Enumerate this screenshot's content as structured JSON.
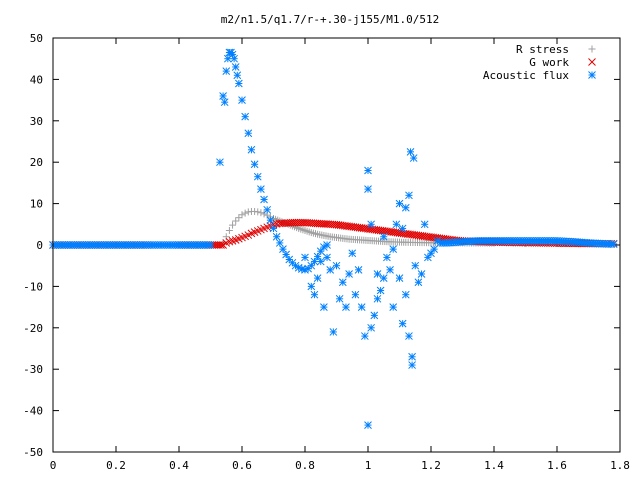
{
  "chart_data": {
    "type": "scatter",
    "title": "m2/n1.5/q1.7/r-+.30-j155/M1.0/512",
    "xlabel": "",
    "ylabel": "",
    "xlim": [
      0,
      1.8
    ],
    "ylim": [
      -50,
      50
    ],
    "xticks": [
      0,
      0.2,
      0.4,
      0.6,
      0.8,
      1,
      1.2,
      1.4,
      1.6,
      1.8
    ],
    "xtick_labels": [
      "0",
      "0.2",
      "0.4",
      "0.6",
      "0.8",
      "1",
      "1.2",
      "1.4",
      "1.6",
      "1.8"
    ],
    "yticks": [
      -50,
      -40,
      -30,
      -20,
      -10,
      0,
      10,
      20,
      30,
      40,
      50
    ],
    "ytick_labels": [
      "-50",
      "-40",
      "-30",
      "-20",
      "-10",
      "0",
      "10",
      "20",
      "30",
      "40",
      "50"
    ],
    "grid": false,
    "legend_position": "top-right",
    "series": [
      {
        "name": "R stress",
        "marker": "plus",
        "color": "#a0a0a0",
        "points": [
          [
            0.0,
            0
          ],
          [
            0.1,
            0
          ],
          [
            0.2,
            0
          ],
          [
            0.3,
            0
          ],
          [
            0.4,
            0
          ],
          [
            0.5,
            0
          ],
          [
            0.53,
            0
          ],
          [
            0.54,
            0.5
          ],
          [
            0.55,
            2
          ],
          [
            0.56,
            3.5
          ],
          [
            0.57,
            4.8
          ],
          [
            0.58,
            5.8
          ],
          [
            0.59,
            6.6
          ],
          [
            0.6,
            7.3
          ],
          [
            0.61,
            7.7
          ],
          [
            0.62,
            8.0
          ],
          [
            0.63,
            8.1
          ],
          [
            0.64,
            8.1
          ],
          [
            0.65,
            8.0
          ],
          [
            0.66,
            7.8
          ],
          [
            0.67,
            7.5
          ],
          [
            0.68,
            7.2
          ],
          [
            0.69,
            6.8
          ],
          [
            0.7,
            6.4
          ],
          [
            0.72,
            5.8
          ],
          [
            0.74,
            5.2
          ],
          [
            0.76,
            4.6
          ],
          [
            0.78,
            4.0
          ],
          [
            0.8,
            3.5
          ],
          [
            0.82,
            3.0
          ],
          [
            0.84,
            2.6
          ],
          [
            0.86,
            2.3
          ],
          [
            0.88,
            2.0
          ],
          [
            0.9,
            1.8
          ],
          [
            0.92,
            1.6
          ],
          [
            0.94,
            1.4
          ],
          [
            0.96,
            1.3
          ],
          [
            0.98,
            1.2
          ],
          [
            1.0,
            1.1
          ],
          [
            1.02,
            1.0
          ],
          [
            1.04,
            0.9
          ],
          [
            1.06,
            0.8
          ],
          [
            1.08,
            0.75
          ],
          [
            1.1,
            0.7
          ],
          [
            1.12,
            0.65
          ],
          [
            1.15,
            0.6
          ],
          [
            1.2,
            0.55
          ],
          [
            1.25,
            0.5
          ],
          [
            1.3,
            0.5
          ],
          [
            1.4,
            0.45
          ],
          [
            1.5,
            0.4
          ],
          [
            1.6,
            0.35
          ],
          [
            1.7,
            0.3
          ],
          [
            1.78,
            0.3
          ]
        ]
      },
      {
        "name": "G work",
        "marker": "cross",
        "color": "#e00000",
        "points": [
          [
            0.0,
            0
          ],
          [
            0.1,
            0
          ],
          [
            0.2,
            0
          ],
          [
            0.3,
            0
          ],
          [
            0.4,
            0
          ],
          [
            0.5,
            0
          ],
          [
            0.54,
            0
          ],
          [
            0.55,
            0.5
          ],
          [
            0.56,
            0.8
          ],
          [
            0.57,
            1.0
          ],
          [
            0.58,
            1.2
          ],
          [
            0.59,
            1.5
          ],
          [
            0.6,
            1.8
          ],
          [
            0.61,
            2.1
          ],
          [
            0.62,
            2.4
          ],
          [
            0.63,
            2.8
          ],
          [
            0.64,
            3.1
          ],
          [
            0.65,
            3.4
          ],
          [
            0.66,
            3.7
          ],
          [
            0.67,
            4.0
          ],
          [
            0.68,
            4.3
          ],
          [
            0.69,
            4.6
          ],
          [
            0.7,
            4.9
          ],
          [
            0.71,
            5.1
          ],
          [
            0.72,
            5.2
          ],
          [
            0.74,
            5.3
          ],
          [
            0.76,
            5.4
          ],
          [
            0.78,
            5.4
          ],
          [
            0.8,
            5.4
          ],
          [
            0.82,
            5.3
          ],
          [
            0.84,
            5.2
          ],
          [
            0.86,
            5.1
          ],
          [
            0.88,
            5.0
          ],
          [
            0.9,
            4.9
          ],
          [
            0.92,
            4.7
          ],
          [
            0.94,
            4.5
          ],
          [
            0.96,
            4.3
          ],
          [
            0.98,
            4.1
          ],
          [
            1.0,
            3.9
          ],
          [
            1.02,
            3.7
          ],
          [
            1.04,
            3.5
          ],
          [
            1.06,
            3.3
          ],
          [
            1.08,
            3.1
          ],
          [
            1.1,
            2.9
          ],
          [
            1.12,
            2.7
          ],
          [
            1.14,
            2.5
          ],
          [
            1.16,
            2.3
          ],
          [
            1.18,
            2.1
          ],
          [
            1.2,
            1.9
          ],
          [
            1.22,
            1.7
          ],
          [
            1.24,
            1.5
          ],
          [
            1.26,
            1.3
          ],
          [
            1.28,
            1.1
          ],
          [
            1.3,
            1.0
          ],
          [
            1.32,
            0.9
          ],
          [
            1.35,
            0.8
          ],
          [
            1.4,
            0.7
          ],
          [
            1.45,
            0.6
          ],
          [
            1.5,
            0.55
          ],
          [
            1.55,
            0.5
          ],
          [
            1.6,
            0.45
          ],
          [
            1.65,
            0.4
          ],
          [
            1.7,
            0.35
          ],
          [
            1.75,
            0.3
          ],
          [
            1.78,
            0.3
          ]
        ]
      },
      {
        "name": "Acoustic flux",
        "marker": "star",
        "color": "#0080ff",
        "points": [
          [
            0.0,
            0
          ],
          [
            0.05,
            0
          ],
          [
            0.1,
            0
          ],
          [
            0.15,
            0
          ],
          [
            0.2,
            0
          ],
          [
            0.25,
            0
          ],
          [
            0.3,
            0
          ],
          [
            0.35,
            0
          ],
          [
            0.4,
            0
          ],
          [
            0.45,
            0
          ],
          [
            0.5,
            0
          ],
          [
            0.53,
            20
          ],
          [
            0.54,
            36
          ],
          [
            0.545,
            34.5
          ],
          [
            0.55,
            42
          ],
          [
            0.555,
            45
          ],
          [
            0.56,
            46.5
          ],
          [
            0.565,
            46.5
          ],
          [
            0.57,
            46
          ],
          [
            0.575,
            45
          ],
          [
            0.58,
            43
          ],
          [
            0.585,
            41
          ],
          [
            0.59,
            39
          ],
          [
            0.6,
            35
          ],
          [
            0.61,
            31
          ],
          [
            0.62,
            27
          ],
          [
            0.63,
            23
          ],
          [
            0.64,
            19.5
          ],
          [
            0.65,
            16.5
          ],
          [
            0.66,
            13.5
          ],
          [
            0.67,
            11
          ],
          [
            0.68,
            8.5
          ],
          [
            0.69,
            6
          ],
          [
            0.7,
            4
          ],
          [
            0.71,
            2
          ],
          [
            0.72,
            0.5
          ],
          [
            0.73,
            -1
          ],
          [
            0.74,
            -2.3
          ],
          [
            0.75,
            -3.5
          ],
          [
            0.76,
            -4.3
          ],
          [
            0.77,
            -5
          ],
          [
            0.78,
            -5.5
          ],
          [
            0.79,
            -5.8
          ],
          [
            0.8,
            -6
          ],
          [
            0.81,
            -5.7
          ],
          [
            0.82,
            -5
          ],
          [
            0.83,
            -4
          ],
          [
            0.84,
            -2.8
          ],
          [
            0.85,
            -1.5
          ],
          [
            0.86,
            -0.5
          ],
          [
            0.87,
            0
          ],
          [
            0.8,
            -3
          ],
          [
            0.82,
            -10
          ],
          [
            0.83,
            -12
          ],
          [
            0.84,
            -8
          ],
          [
            0.85,
            -4
          ],
          [
            0.86,
            -15
          ],
          [
            0.87,
            -3
          ],
          [
            0.88,
            -6
          ],
          [
            0.89,
            -21
          ],
          [
            0.9,
            -5
          ],
          [
            0.91,
            -13
          ],
          [
            0.92,
            -9
          ],
          [
            0.93,
            -15
          ],
          [
            0.94,
            -7
          ],
          [
            0.95,
            -2
          ],
          [
            0.96,
            -12
          ],
          [
            0.97,
            -6
          ],
          [
            0.98,
            -15
          ],
          [
            0.99,
            -22
          ],
          [
            1.0,
            -43.5
          ],
          [
            1.0,
            18
          ],
          [
            1.0,
            13.5
          ],
          [
            1.01,
            5
          ],
          [
            1.01,
            -20
          ],
          [
            1.02,
            -17
          ],
          [
            1.03,
            -13
          ],
          [
            1.03,
            -7
          ],
          [
            1.04,
            -11
          ],
          [
            1.05,
            -8
          ],
          [
            1.05,
            2
          ],
          [
            1.06,
            -3
          ],
          [
            1.07,
            -6
          ],
          [
            1.08,
            -15
          ],
          [
            1.08,
            -1
          ],
          [
            1.09,
            5
          ],
          [
            1.1,
            10
          ],
          [
            1.1,
            -8
          ],
          [
            1.11,
            -19
          ],
          [
            1.11,
            4
          ],
          [
            1.12,
            9
          ],
          [
            1.12,
            -12
          ],
          [
            1.13,
            -22
          ],
          [
            1.13,
            12
          ],
          [
            1.135,
            22.5
          ],
          [
            1.14,
            -29
          ],
          [
            1.14,
            -27
          ],
          [
            1.145,
            21
          ],
          [
            1.15,
            -5
          ],
          [
            1.16,
            -9
          ],
          [
            1.17,
            -7
          ],
          [
            1.18,
            5
          ],
          [
            1.19,
            -3
          ],
          [
            1.2,
            -2
          ],
          [
            1.21,
            -1
          ],
          [
            1.22,
            1
          ],
          [
            1.23,
            0.5
          ],
          [
            1.25,
            0.5
          ],
          [
            1.3,
            0.8
          ],
          [
            1.35,
            1
          ],
          [
            1.4,
            1
          ],
          [
            1.45,
            1
          ],
          [
            1.5,
            1
          ],
          [
            1.55,
            1
          ],
          [
            1.6,
            1
          ],
          [
            1.65,
            0.8
          ],
          [
            1.7,
            0.5
          ],
          [
            1.75,
            0.3
          ],
          [
            1.78,
            0.2
          ]
        ]
      }
    ]
  },
  "legend": [
    {
      "label": "R stress",
      "marker": "plus",
      "color": "#a0a0a0"
    },
    {
      "label": "G work",
      "marker": "cross",
      "color": "#e00000"
    },
    {
      "label": "Acoustic flux",
      "marker": "star",
      "color": "#0080ff"
    }
  ]
}
